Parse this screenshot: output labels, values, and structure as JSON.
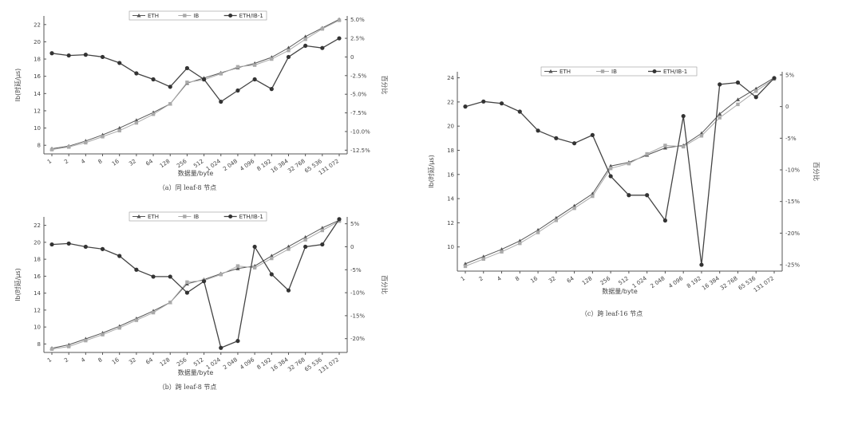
{
  "chart_data": [
    {
      "type": "line",
      "caption": "（a）同 leaf-8 节点",
      "xlabel": "数据量/byte",
      "ylabel": "Ib(时延/μs)",
      "y2label": "百分比",
      "categories": [
        "1",
        "2",
        "4",
        "8",
        "16",
        "32",
        "64",
        "128",
        "256",
        "512",
        "1 024",
        "2 048",
        "4 096",
        "8 192",
        "16 384",
        "32 768",
        "65 536",
        "131 072"
      ],
      "yticks": [
        "8",
        "10",
        "12",
        "14",
        "16",
        "18",
        "20",
        "22"
      ],
      "ylim": [
        7,
        23
      ],
      "y2ticks": [
        "5.0%",
        "2.5%",
        "0",
        "-2.5%",
        "-5.0%",
        "-7.5%",
        "-10.0%",
        "-12.5%"
      ],
      "y2lim": [
        -13,
        5.5
      ],
      "y2tick_values": [
        5,
        2.5,
        0,
        -2.5,
        -5,
        -7.5,
        -10,
        -12.5
      ],
      "legend": [
        "ETH",
        "IB",
        "ETH/IB-1"
      ],
      "series": [
        {
          "name": "ETH",
          "axis": "left",
          "marker": "triangle",
          "values": [
            7.6,
            7.9,
            8.5,
            9.2,
            10.0,
            10.9,
            11.8,
            12.8,
            15.2,
            15.8,
            16.4,
            17.0,
            17.5,
            18.2,
            19.3,
            20.6,
            21.6,
            22.6
          ]
        },
        {
          "name": "IB",
          "axis": "left",
          "marker": "square",
          "values": [
            7.5,
            7.8,
            8.3,
            9.0,
            9.7,
            10.6,
            11.6,
            12.8,
            15.3,
            15.6,
            16.3,
            17.1,
            17.3,
            18.0,
            19.0,
            20.3,
            21.5,
            22.5
          ]
        },
        {
          "name": "ETH/IB-1",
          "axis": "right",
          "marker": "circle",
          "values": [
            0.5,
            0.2,
            0.3,
            0.0,
            -0.8,
            -2.2,
            -3.0,
            -4.0,
            -1.5,
            -3.0,
            -6.0,
            -4.5,
            -3.0,
            -4.3,
            0.0,
            1.5,
            1.2,
            2.5
          ]
        }
      ]
    },
    {
      "type": "line",
      "caption": "（b）跨 leaf-8 节点",
      "xlabel": "数据量/byte",
      "ylabel": "Ib(时延/μs)",
      "y2label": "百分比",
      "categories": [
        "1",
        "2",
        "4",
        "8",
        "16",
        "32",
        "64",
        "128",
        "256",
        "512",
        "1 024",
        "2 048",
        "4 096",
        "8 192",
        "16 384",
        "32 768",
        "65 536",
        "131 072"
      ],
      "yticks": [
        "8",
        "10",
        "12",
        "14",
        "16",
        "18",
        "20",
        "22"
      ],
      "ylim": [
        7,
        23
      ],
      "y2ticks": [
        "5%",
        "0",
        "-5%",
        "-10%",
        "-15%",
        "-20%"
      ],
      "y2lim": [
        -23,
        6.5
      ],
      "y2tick_values": [
        5,
        0,
        -5,
        -10,
        -15,
        -20
      ],
      "legend": [
        "ETH",
        "IB",
        "ETH/IB-1"
      ],
      "series": [
        {
          "name": "ETH",
          "axis": "left",
          "marker": "triangle",
          "values": [
            7.5,
            7.9,
            8.6,
            9.3,
            10.1,
            11.0,
            11.9,
            12.9,
            15.1,
            15.6,
            16.3,
            16.9,
            17.2,
            18.4,
            19.5,
            20.6,
            21.7,
            22.6
          ]
        },
        {
          "name": "IB",
          "axis": "left",
          "marker": "square",
          "values": [
            7.4,
            7.7,
            8.4,
            9.1,
            9.9,
            10.8,
            11.7,
            12.9,
            15.3,
            15.5,
            16.2,
            17.2,
            17.0,
            18.1,
            19.2,
            20.3,
            21.4,
            22.5
          ]
        },
        {
          "name": "ETH/IB-1",
          "axis": "right",
          "marker": "circle",
          "values": [
            0.5,
            0.7,
            0.0,
            -0.5,
            -2.0,
            -5.0,
            -6.5,
            -6.5,
            -10.0,
            -7.5,
            -22.0,
            -20.5,
            0.0,
            -6.0,
            -9.5,
            0.0,
            0.5,
            6.0
          ]
        }
      ]
    },
    {
      "type": "line",
      "caption": "（c）跨 leaf-16 节点",
      "xlabel": "数据量/byte",
      "ylabel": "Ib(时延/μs)",
      "y2label": "百分比",
      "categories": [
        "1",
        "2",
        "4",
        "8",
        "16",
        "32",
        "64",
        "128",
        "256",
        "512",
        "1 024",
        "2 048",
        "4 096",
        "8 192",
        "16 384",
        "32 768",
        "65 536",
        "131 072"
      ],
      "yticks": [
        "10",
        "12",
        "14",
        "16",
        "18",
        "20",
        "22",
        "24"
      ],
      "ylim": [
        8,
        24.5
      ],
      "y2ticks": [
        "5%",
        "0",
        "-5%",
        "-10%",
        "-15%",
        "-20%",
        "-25%"
      ],
      "y2lim": [
        -26,
        5.5
      ],
      "y2tick_values": [
        5,
        0,
        -5,
        -10,
        -15,
        -20,
        -25
      ],
      "legend": [
        "ETH",
        "IB",
        "ETH/IB-1"
      ],
      "series": [
        {
          "name": "ETH",
          "axis": "left",
          "marker": "triangle",
          "values": [
            8.6,
            9.2,
            9.8,
            10.5,
            11.4,
            12.4,
            13.4,
            14.4,
            16.7,
            17.0,
            17.6,
            18.2,
            18.4,
            19.4,
            21.0,
            22.2,
            23.1,
            24.0
          ]
        },
        {
          "name": "IB",
          "axis": "left",
          "marker": "square",
          "values": [
            8.4,
            9.0,
            9.6,
            10.3,
            11.2,
            12.2,
            13.2,
            14.2,
            16.5,
            16.9,
            17.7,
            18.4,
            18.3,
            19.2,
            20.7,
            21.8,
            22.9,
            23.9
          ]
        },
        {
          "name": "ETH/IB-1",
          "axis": "right",
          "marker": "circle",
          "values": [
            0.0,
            0.8,
            0.5,
            -0.8,
            -3.8,
            -5.0,
            -5.8,
            -4.5,
            -11.0,
            -14.0,
            -14.0,
            -18.0,
            -1.5,
            -25.0,
            3.5,
            3.8,
            1.5,
            4.5
          ]
        }
      ]
    }
  ]
}
